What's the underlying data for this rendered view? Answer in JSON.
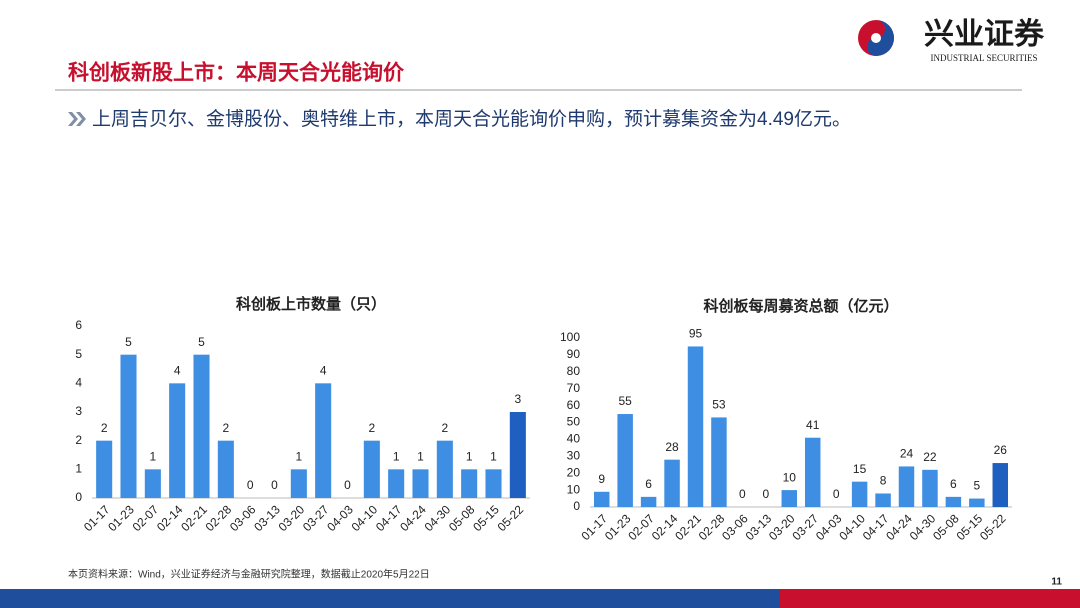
{
  "header": {
    "title": "科创板新股上市：本周天合光能询价",
    "bullet": "上周吉贝尔、金博股份、奥特维上市，本周天合光能询价申购，预计募集资金为4.49亿元。",
    "logo_name": "兴业证券",
    "logo_subname": "INDUSTRIAL SECURITIES"
  },
  "footer": {
    "source": "本页资料来源：Wind，兴业证券经济与金融研究院整理，数据截止2020年5月22日",
    "page": "11"
  },
  "chart_data": [
    {
      "type": "bar",
      "title": "科创板上市数量（只）",
      "categories": [
        "01-17",
        "01-23",
        "02-07",
        "02-14",
        "02-21",
        "02-28",
        "03-06",
        "03-13",
        "03-20",
        "03-27",
        "04-03",
        "04-10",
        "04-17",
        "04-24",
        "04-30",
        "05-08",
        "05-15",
        "05-22"
      ],
      "values": [
        2,
        5,
        1,
        4,
        5,
        2,
        0,
        0,
        1,
        4,
        0,
        2,
        1,
        1,
        2,
        1,
        1,
        3
      ],
      "colors": [
        "#3e8fe3",
        "#3e8fe3",
        "#3e8fe3",
        "#3e8fe3",
        "#3e8fe3",
        "#3e8fe3",
        "#3e8fe3",
        "#3e8fe3",
        "#3e8fe3",
        "#3e8fe3",
        "#3e8fe3",
        "#3e8fe3",
        "#3e8fe3",
        "#3e8fe3",
        "#3e8fe3",
        "#3e8fe3",
        "#3e8fe3",
        "#1f5fbf"
      ],
      "ylim": [
        0,
        6
      ],
      "yticks": [
        0,
        1,
        2,
        3,
        4,
        5,
        6
      ],
      "grid": false
    },
    {
      "type": "bar",
      "title": "科创板每周募资总额（亿元）",
      "categories": [
        "01-17",
        "01-23",
        "02-07",
        "02-14",
        "02-21",
        "02-28",
        "03-06",
        "03-13",
        "03-20",
        "03-27",
        "04-03",
        "04-10",
        "04-17",
        "04-24",
        "04-30",
        "05-08",
        "05-15",
        "05-22"
      ],
      "values": [
        9,
        55,
        6,
        28,
        95,
        53,
        0,
        0,
        10,
        41,
        0,
        15,
        8,
        24,
        22,
        6,
        5,
        26
      ],
      "colors": [
        "#3e8fe3",
        "#3e8fe3",
        "#3e8fe3",
        "#3e8fe3",
        "#3e8fe3",
        "#3e8fe3",
        "#3e8fe3",
        "#3e8fe3",
        "#3e8fe3",
        "#3e8fe3",
        "#3e8fe3",
        "#3e8fe3",
        "#3e8fe3",
        "#3e8fe3",
        "#3e8fe3",
        "#3e8fe3",
        "#3e8fe3",
        "#1f5fbf"
      ],
      "ylim": [
        0,
        100
      ],
      "yticks": [
        0,
        10,
        20,
        30,
        40,
        50,
        60,
        70,
        80,
        90,
        100
      ],
      "grid": false
    }
  ]
}
